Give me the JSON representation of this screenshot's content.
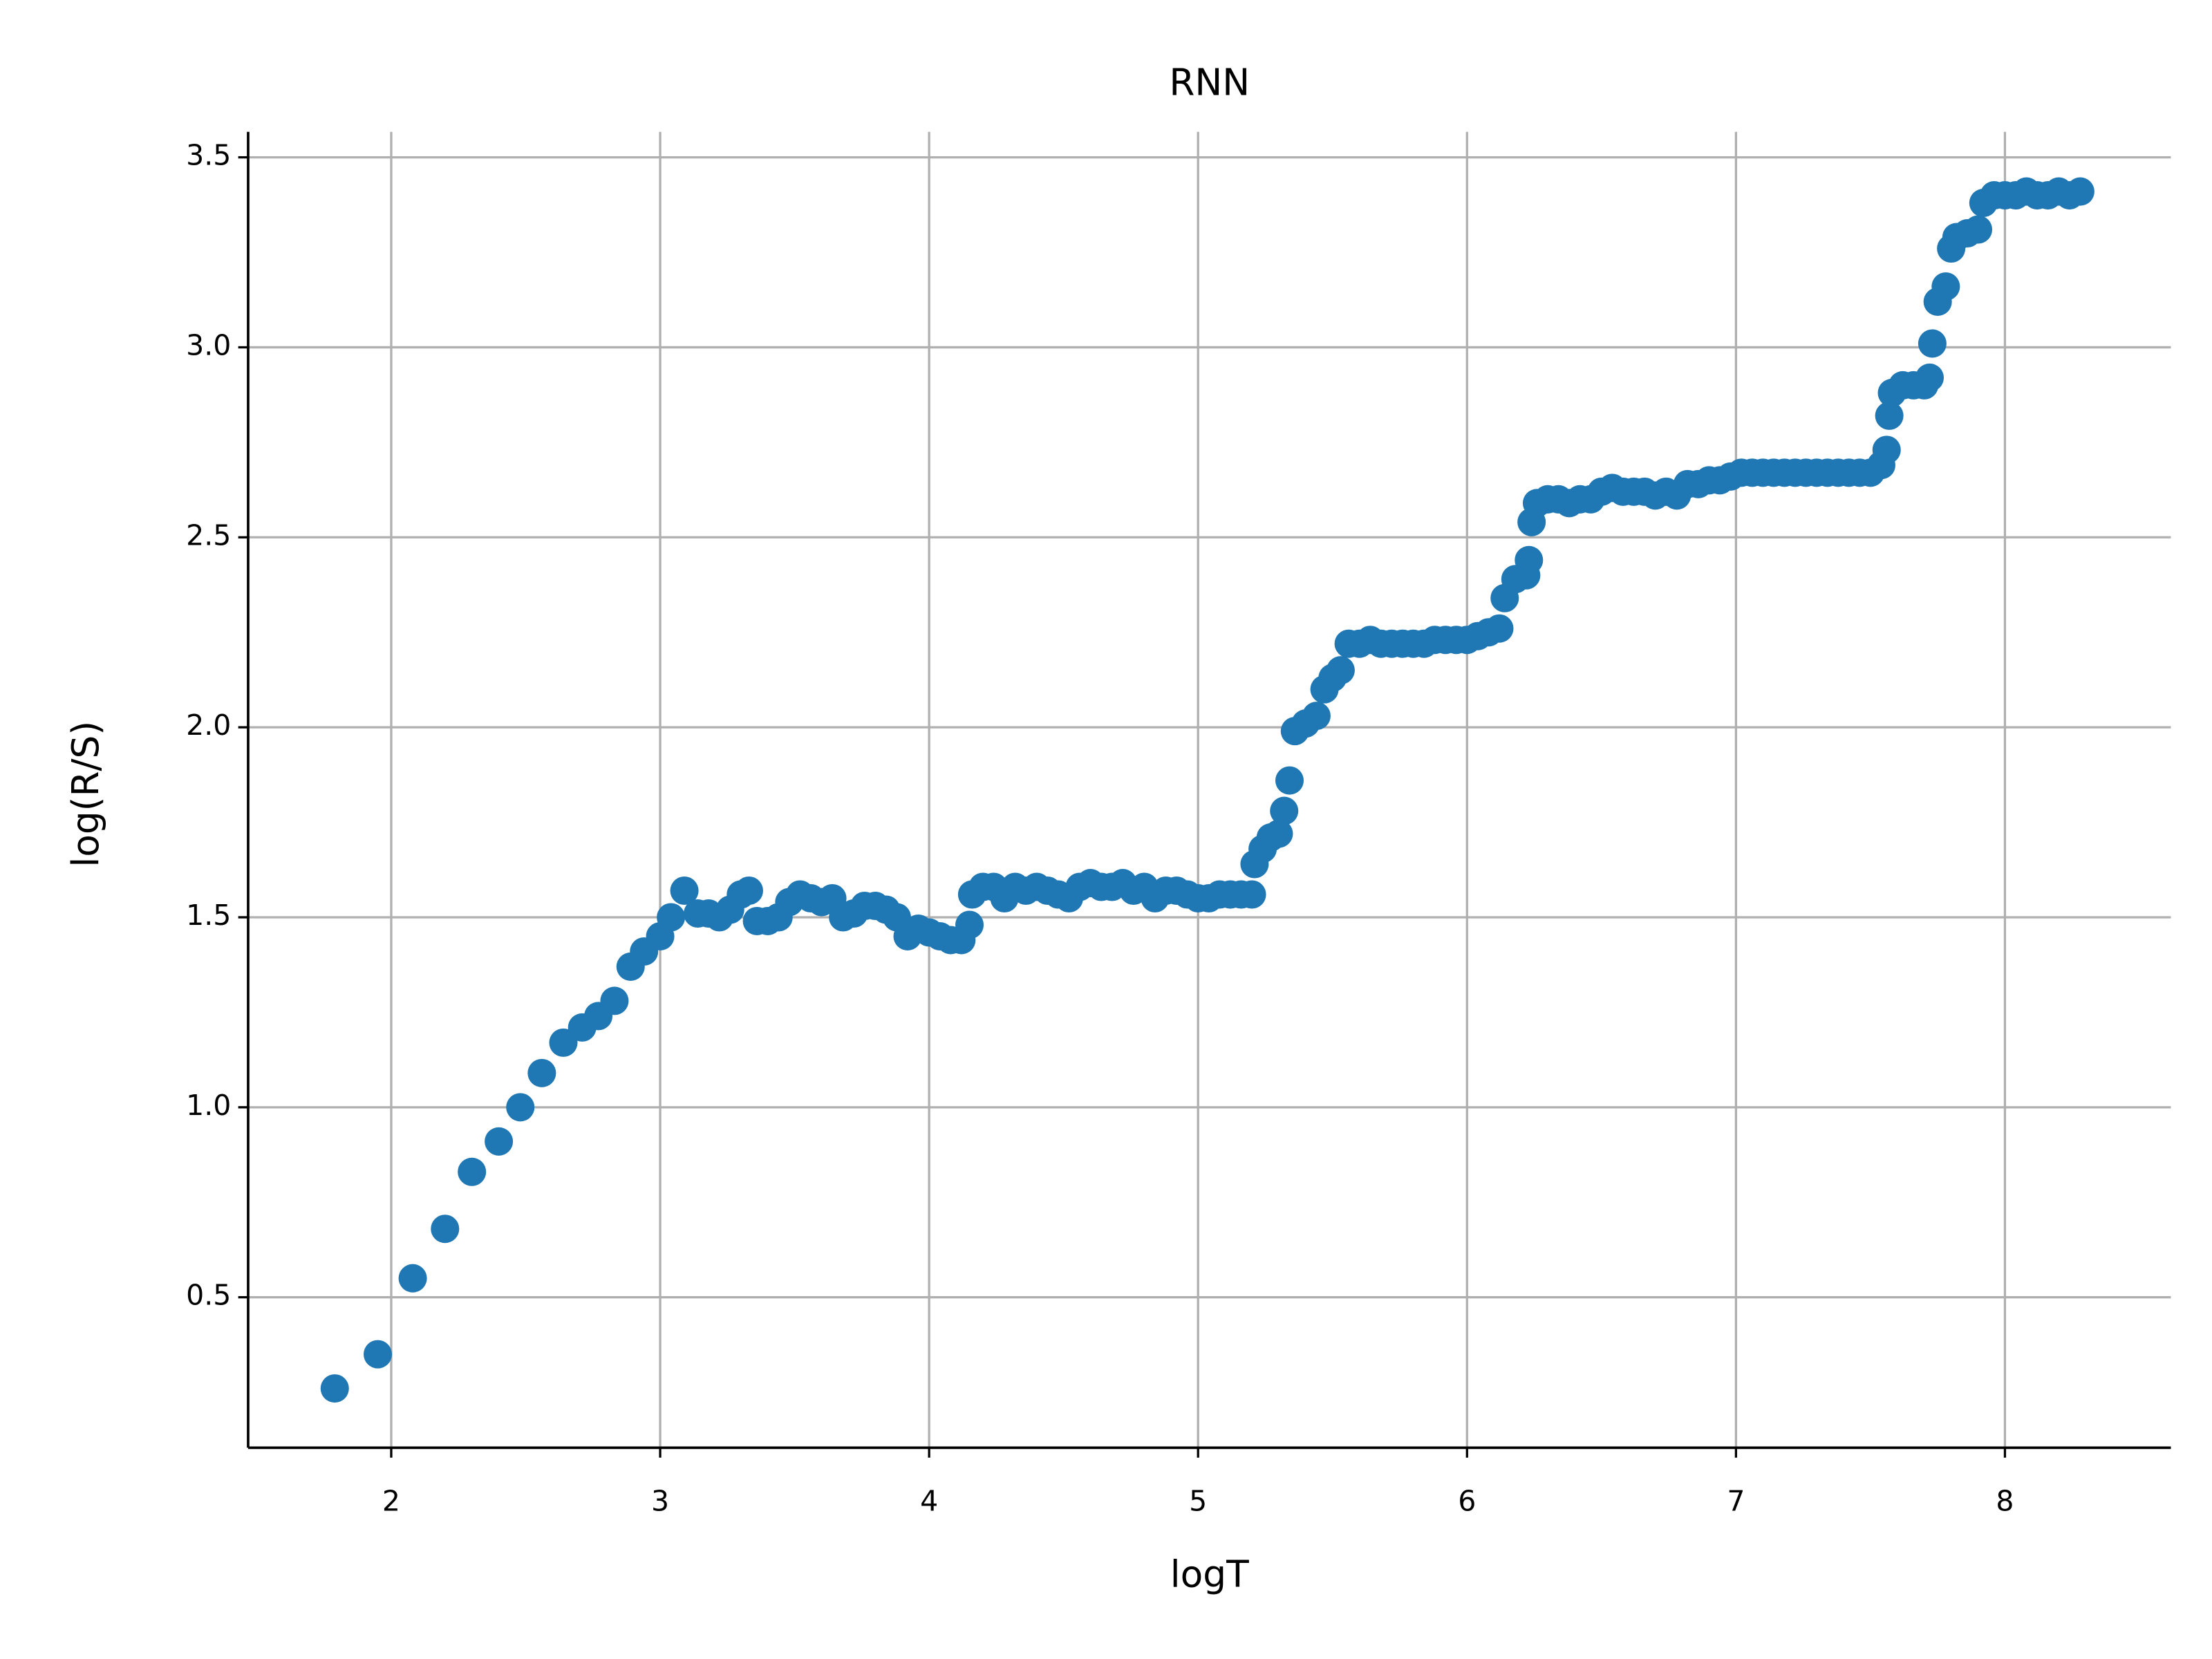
{
  "chart_data": {
    "type": "scatter",
    "title": "RNN",
    "x_label": "logT",
    "y_label": "log(R/S)",
    "color": "#1f77b4",
    "grid": true,
    "xlim": [
      1.468,
      8.617
    ],
    "ylim": [
      0.104,
      3.567
    ],
    "xticks": [
      2,
      3,
      4,
      5,
      6,
      7,
      8
    ],
    "yticks": [
      0.5,
      {
        "value": 1,
        "label": "1.0"
      },
      1.5,
      {
        "value": 2,
        "label": "2.0"
      },
      2.5,
      {
        "value": 3,
        "label": "3.0"
      },
      3.5
    ],
    "x": [
      1.79,
      1.95,
      2.08,
      2.2,
      2.3,
      2.4,
      2.48,
      2.56,
      2.64,
      2.71,
      2.77,
      2.83,
      2.89,
      2.94,
      3.0,
      3.04,
      3.09,
      3.14,
      3.18,
      3.22,
      3.26,
      3.3,
      3.33,
      3.36,
      3.4,
      3.44,
      3.48,
      3.52,
      3.56,
      3.6,
      3.64,
      3.68,
      3.72,
      3.76,
      3.8,
      3.84,
      3.88,
      3.92,
      3.96,
      4.0,
      4.04,
      4.08,
      4.12,
      4.15,
      4.16,
      4.2,
      4.24,
      4.28,
      4.32,
      4.36,
      4.4,
      4.44,
      4.48,
      4.52,
      4.56,
      4.6,
      4.64,
      4.68,
      4.72,
      4.76,
      4.8,
      4.84,
      4.88,
      4.92,
      4.96,
      5.0,
      5.04,
      5.08,
      5.12,
      5.16,
      5.2,
      5.21,
      5.24,
      5.27,
      5.3,
      5.32,
      5.34,
      5.36,
      5.4,
      5.44,
      5.47,
      5.5,
      5.53,
      5.56,
      5.6,
      5.64,
      5.68,
      5.72,
      5.76,
      5.8,
      5.84,
      5.88,
      5.92,
      5.96,
      6.0,
      6.04,
      6.08,
      6.12,
      6.14,
      6.18,
      6.22,
      6.23,
      6.24,
      6.26,
      6.3,
      6.34,
      6.38,
      6.42,
      6.46,
      6.5,
      6.54,
      6.58,
      6.62,
      6.66,
      6.7,
      6.74,
      6.78,
      6.82,
      6.86,
      6.9,
      6.94,
      6.98,
      7.02,
      7.06,
      7.1,
      7.14,
      7.18,
      7.22,
      7.26,
      7.3,
      7.34,
      7.38,
      7.42,
      7.46,
      7.5,
      7.54,
      7.56,
      7.57,
      7.58,
      7.62,
      7.66,
      7.7,
      7.72,
      7.73,
      7.75,
      7.78,
      7.8,
      7.82,
      7.86,
      7.9,
      7.92,
      7.96,
      8.0,
      8.04,
      8.08,
      8.12,
      8.16,
      8.2,
      8.24,
      8.28
    ],
    "values": [
      0.26,
      0.35,
      0.55,
      0.68,
      0.83,
      0.91,
      1.0,
      1.09,
      1.17,
      1.21,
      1.24,
      1.28,
      1.37,
      1.41,
      1.45,
      1.5,
      1.57,
      1.51,
      1.51,
      1.5,
      1.52,
      1.56,
      1.57,
      1.49,
      1.49,
      1.5,
      1.54,
      1.56,
      1.55,
      1.54,
      1.55,
      1.5,
      1.51,
      1.53,
      1.53,
      1.52,
      1.5,
      1.45,
      1.47,
      1.46,
      1.45,
      1.44,
      1.44,
      1.48,
      1.56,
      1.58,
      1.58,
      1.55,
      1.58,
      1.57,
      1.58,
      1.57,
      1.56,
      1.55,
      1.58,
      1.59,
      1.58,
      1.58,
      1.59,
      1.57,
      1.58,
      1.55,
      1.57,
      1.57,
      1.56,
      1.55,
      1.55,
      1.56,
      1.56,
      1.56,
      1.56,
      1.64,
      1.68,
      1.71,
      1.72,
      1.78,
      1.86,
      1.99,
      2.01,
      2.03,
      2.1,
      2.13,
      2.15,
      2.22,
      2.22,
      2.23,
      2.22,
      2.22,
      2.22,
      2.22,
      2.22,
      2.23,
      2.23,
      2.23,
      2.23,
      2.24,
      2.25,
      2.26,
      2.34,
      2.39,
      2.4,
      2.44,
      2.54,
      2.59,
      2.6,
      2.6,
      2.59,
      2.6,
      2.6,
      2.62,
      2.63,
      2.62,
      2.62,
      2.62,
      2.61,
      2.62,
      2.61,
      2.64,
      2.64,
      2.65,
      2.65,
      2.66,
      2.67,
      2.67,
      2.67,
      2.67,
      2.67,
      2.67,
      2.67,
      2.67,
      2.67,
      2.67,
      2.67,
      2.67,
      2.67,
      2.69,
      2.73,
      2.82,
      2.88,
      2.9,
      2.9,
      2.9,
      2.92,
      3.01,
      3.12,
      3.16,
      3.26,
      3.29,
      3.3,
      3.31,
      3.38,
      3.4,
      3.4,
      3.4,
      3.41,
      3.4,
      3.4,
      3.41,
      3.4,
      3.41
    ]
  }
}
